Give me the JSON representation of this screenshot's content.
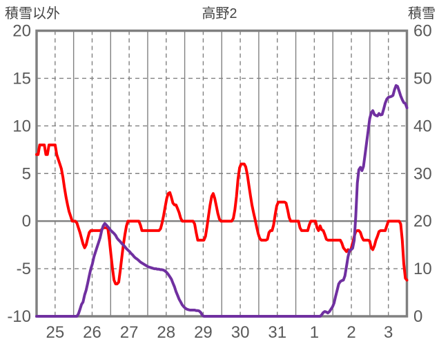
{
  "header": {
    "left_axis_title": "積雪以外",
    "title": "高野2",
    "right_axis_title": "積雪"
  },
  "chart_data": {
    "type": "line",
    "title": "高野2",
    "x_categories": [
      "25",
      "26",
      "27",
      "28",
      "29",
      "30",
      "31",
      "1",
      "2",
      "3"
    ],
    "x_unit": "hourly points across 10 days, day boundaries solid gridlines, midday dashed gridlines",
    "left_axis": {
      "label": "積雪以外",
      "min": -10,
      "max": 20,
      "ticks": [
        20,
        15,
        10,
        5,
        0,
        -5,
        -10
      ]
    },
    "right_axis": {
      "label": "積雪",
      "min": 0,
      "max": 60,
      "ticks": [
        60,
        50,
        40,
        30,
        20,
        10,
        0
      ]
    },
    "grid": {
      "on": true,
      "zero_line": true
    },
    "legend": "none",
    "colors": {
      "grid": "#808080",
      "border": "#808080",
      "tick_text": "#595959",
      "header_text": "#444444",
      "background": "#FFFFFF"
    },
    "series": [
      {
        "name": "積雪以外",
        "axis": "left",
        "color": "#FF0000",
        "width": 4,
        "values": [
          7,
          7,
          8,
          8,
          8,
          8,
          7,
          7,
          8,
          8,
          8,
          8,
          8,
          7,
          6.5,
          6,
          5.5,
          4.6,
          3.5,
          2.5,
          1.7,
          1,
          0.5,
          0,
          0,
          0,
          -0.2,
          -0.7,
          -1.2,
          -1.8,
          -2.4,
          -2.8,
          -2.5,
          -1.8,
          -1.2,
          -1,
          -1,
          -1,
          -1,
          -1,
          -1,
          -1,
          -0.9,
          -0.7,
          -0.7,
          -0.7,
          -0.8,
          -2,
          -3.5,
          -5,
          -6.2,
          -6.6,
          -6.6,
          -6.4,
          -5.2,
          -3.8,
          -2.5,
          -1.4,
          -0.5,
          0,
          0,
          0,
          0,
          0,
          0,
          0,
          0,
          -0.4,
          -1,
          -1,
          -1,
          -1,
          -1,
          -1,
          -1,
          -1,
          -1,
          -1,
          -1,
          -1,
          -0.8,
          -0.2,
          0.6,
          1.5,
          2.4,
          2.9,
          3,
          2.5,
          1.9,
          1.7,
          1.7,
          1.3,
          0.9,
          0.3,
          0,
          0,
          0,
          0,
          0,
          0,
          0,
          0,
          -0.3,
          -1.2,
          -2,
          -2,
          -2,
          -2,
          -2,
          -1.6,
          -0.6,
          0.6,
          1.7,
          2.6,
          2.9,
          2.4,
          1.6,
          0.8,
          0.2,
          0,
          0,
          0,
          0,
          0,
          0,
          0,
          0,
          0.3,
          1.2,
          2.6,
          4.4,
          5.6,
          6,
          6,
          6,
          5.7,
          4.9,
          3.8,
          2.7,
          1.7,
          0.9,
          0.2,
          -0.6,
          -1.3,
          -1.8,
          -2,
          -2,
          -2,
          -2,
          -1.9,
          -1.2,
          -1,
          -1,
          -0.4,
          0.7,
          1.6,
          2,
          2,
          2,
          2,
          2,
          1.9,
          1.2,
          0.4,
          0,
          0,
          0,
          0,
          0,
          0,
          -0.7,
          -1,
          -1,
          -1,
          -1,
          -1,
          -0.4,
          0,
          0,
          0,
          0,
          -0.7,
          -1,
          -0.5,
          -0.9,
          -1,
          -1.4,
          -1.9,
          -2,
          -2,
          -2,
          -2,
          -2,
          -2,
          -2,
          -2,
          -2,
          -2.3,
          -2.8,
          -3,
          -3.2,
          -3,
          -3.2,
          -2.9,
          -2.3,
          -1.6,
          -1.1,
          -1,
          -1,
          -1.2,
          -1.7,
          -2,
          -2,
          -2,
          -2,
          -2.1,
          -2.8,
          -3,
          -2.6,
          -2,
          -1.6,
          -1.1,
          -1,
          -1,
          -1,
          -1,
          -0.5,
          0,
          0,
          0,
          0,
          0,
          0,
          0,
          0,
          -0.3,
          -2,
          -4.5,
          -6,
          -6.2
        ]
      },
      {
        "name": "積雪",
        "axis": "right",
        "color": "#7030A0",
        "width": 4,
        "values": [
          0,
          0,
          0,
          0,
          0,
          0,
          0,
          0,
          0,
          0,
          0,
          0,
          0,
          0,
          0,
          0,
          0,
          0,
          0,
          0,
          0,
          0,
          0,
          0,
          0,
          0,
          0,
          0.5,
          1.5,
          2.5,
          3,
          4.5,
          5.5,
          7,
          8.5,
          10,
          11,
          12.5,
          13.5,
          14.5,
          15.5,
          16.5,
          18,
          19,
          19.5,
          19.2,
          18.8,
          18.4,
          18,
          17.7,
          17.4,
          17,
          16.4,
          16,
          15.7,
          15.3,
          15,
          14.6,
          14.2,
          13.9,
          13.6,
          13.2,
          12.9,
          12.5,
          12.2,
          12,
          11.7,
          11.4,
          11.2,
          11,
          10.8,
          10.6,
          10.4,
          10.3,
          10.2,
          10.1,
          10,
          10,
          9.9,
          9.9,
          9.8,
          9.8,
          9.7,
          9.5,
          9.2,
          8.8,
          8.3,
          7.8,
          7,
          6.2,
          5.2,
          4.4,
          3.6,
          3,
          2.4,
          2,
          1.7,
          1.5,
          1.4,
          1.3,
          1.3,
          1.3,
          1.3,
          1.2,
          1.2,
          1.1,
          0.8,
          0.2,
          0,
          0,
          0,
          0,
          0,
          0,
          0,
          0,
          0,
          0,
          0,
          0,
          0,
          0,
          0,
          0,
          0,
          0,
          0,
          0,
          0,
          0,
          0,
          0,
          0,
          0,
          0,
          0,
          0,
          0,
          0,
          0,
          0,
          0,
          0,
          0,
          0,
          0,
          0,
          0,
          0,
          0,
          0,
          0,
          0,
          0,
          0,
          0,
          0,
          0,
          0,
          0,
          0,
          0,
          0,
          0,
          0,
          0,
          0,
          0,
          0,
          0,
          0,
          0,
          0,
          0,
          0,
          0,
          0,
          0,
          0,
          0,
          0,
          0,
          0,
          0,
          0.3,
          0.8,
          1,
          0.9,
          0.7,
          1,
          1.5,
          2,
          2.8,
          4.2,
          5.5,
          6.8,
          7.3,
          7.5,
          7.6,
          8.5,
          10.5,
          12.5,
          13.8,
          14,
          14.3,
          16,
          21,
          28,
          30.8,
          31.3,
          30.6,
          31.5,
          34,
          36.5,
          39,
          41.5,
          42.8,
          43.2,
          42.4,
          42.2,
          42.1,
          42.6,
          42.3,
          42.4,
          43.5,
          44.8,
          45.6,
          46,
          46.1,
          46.2,
          46.4,
          47.6,
          48.5,
          48.3,
          47.3,
          46.3,
          45.5,
          44.9,
          44.7,
          43.8
        ]
      }
    ]
  }
}
